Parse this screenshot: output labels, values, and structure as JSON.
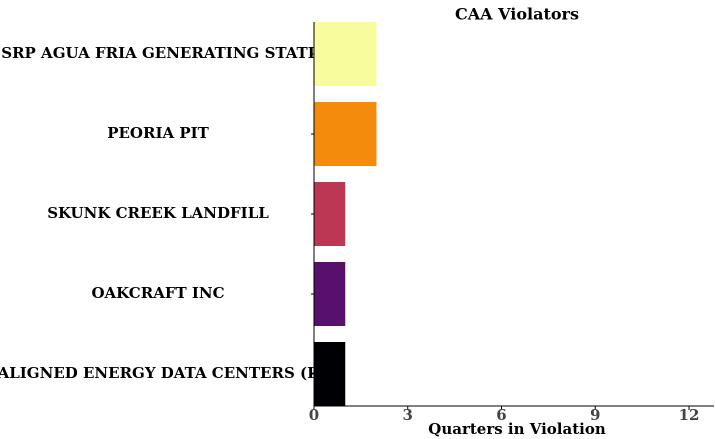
{
  "chart_data": {
    "type": "barh",
    "title": "CAA Violators",
    "xlabel": "Quarters in Violation",
    "categories": [
      "SRP AGUA FRIA GENERATING STATI",
      "PEORIA PIT",
      "SKUNK CREEK LANDFILL",
      "OAKCRAFT INC",
      "ALIGNED ENERGY DATA CENTERS (P"
    ],
    "values": [
      2,
      2,
      1,
      1,
      1
    ],
    "colors": [
      "#f9fc9d",
      "#f58b0c",
      "#bc3754",
      "#57106e",
      "#000004"
    ],
    "xlim": [
      0,
      12.8
    ],
    "xticks": [
      0,
      3,
      6,
      9,
      12
    ]
  }
}
